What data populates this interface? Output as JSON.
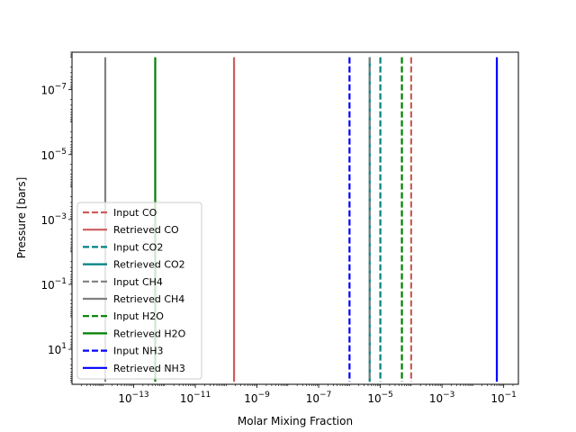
{
  "chart_data": {
    "type": "line",
    "title": "",
    "xlabel": "Molar Mixing Fraction",
    "ylabel": "Pressure [bars]",
    "xscale": "log",
    "yscale": "log",
    "yaxis_inverted": true,
    "xlim": [
      1e-15,
      0.3
    ],
    "ylim": [
      120,
      7e-09
    ],
    "xticks": [
      {
        "value": 1e-13,
        "label": "10^-13"
      },
      {
        "value": 1e-11,
        "label": "10^-11"
      },
      {
        "value": 1e-09,
        "label": "10^-9"
      },
      {
        "value": 1e-07,
        "label": "10^-7"
      },
      {
        "value": 1e-05,
        "label": "10^-5"
      },
      {
        "value": 0.001,
        "label": "10^-3"
      },
      {
        "value": 0.1,
        "label": "10^-1"
      }
    ],
    "yticks": [
      {
        "value": 1e-07,
        "label": "10^-7"
      },
      {
        "value": 1e-05,
        "label": "10^-5"
      },
      {
        "value": 0.001,
        "label": "10^-3"
      },
      {
        "value": 0.1,
        "label": "10^-1"
      },
      {
        "value": 10,
        "label": "10^1"
      }
    ],
    "grid": false,
    "legend_position": "lower-left",
    "series": [
      {
        "name": "Input CO",
        "color": "#cd5c5c",
        "style": "dashed",
        "x": 0.0001,
        "p_range": [
          1e-08,
          100
        ]
      },
      {
        "name": "Retrieved CO",
        "color": "#cd5c5c",
        "style": "solid",
        "x": 1.8e-10,
        "p_range": [
          1e-08,
          100
        ]
      },
      {
        "name": "Input CO2",
        "color": "#008080",
        "style": "dashed",
        "x": 1e-05,
        "p_range": [
          1e-08,
          100
        ]
      },
      {
        "name": "Retrieved CO2",
        "color": "#008080",
        "style": "solid",
        "x": 4.5e-06,
        "p_range": [
          1e-08,
          100
        ]
      },
      {
        "name": "Input CH4",
        "color": "#808080",
        "style": "dashed",
        "x": 4.5e-06,
        "p_range": [
          1e-08,
          100
        ]
      },
      {
        "name": "Retrieved CH4",
        "color": "#808080",
        "style": "solid",
        "x": 1.2e-14,
        "p_range": [
          1e-08,
          100
        ]
      },
      {
        "name": "Input H2O",
        "color": "#008000",
        "style": "dashed",
        "x": 5e-05,
        "p_range": [
          1e-08,
          100
        ]
      },
      {
        "name": "Retrieved H2O",
        "color": "#008000",
        "style": "solid",
        "x": 5e-13,
        "p_range": [
          1e-08,
          100
        ]
      },
      {
        "name": "Input NH3",
        "color": "#0000ff",
        "style": "dashed",
        "x": 1e-06,
        "p_range": [
          1e-08,
          100
        ]
      },
      {
        "name": "Retrieved NH3",
        "color": "#0000ff",
        "style": "solid",
        "x": 0.06,
        "p_range": [
          1e-08,
          100
        ]
      }
    ]
  }
}
